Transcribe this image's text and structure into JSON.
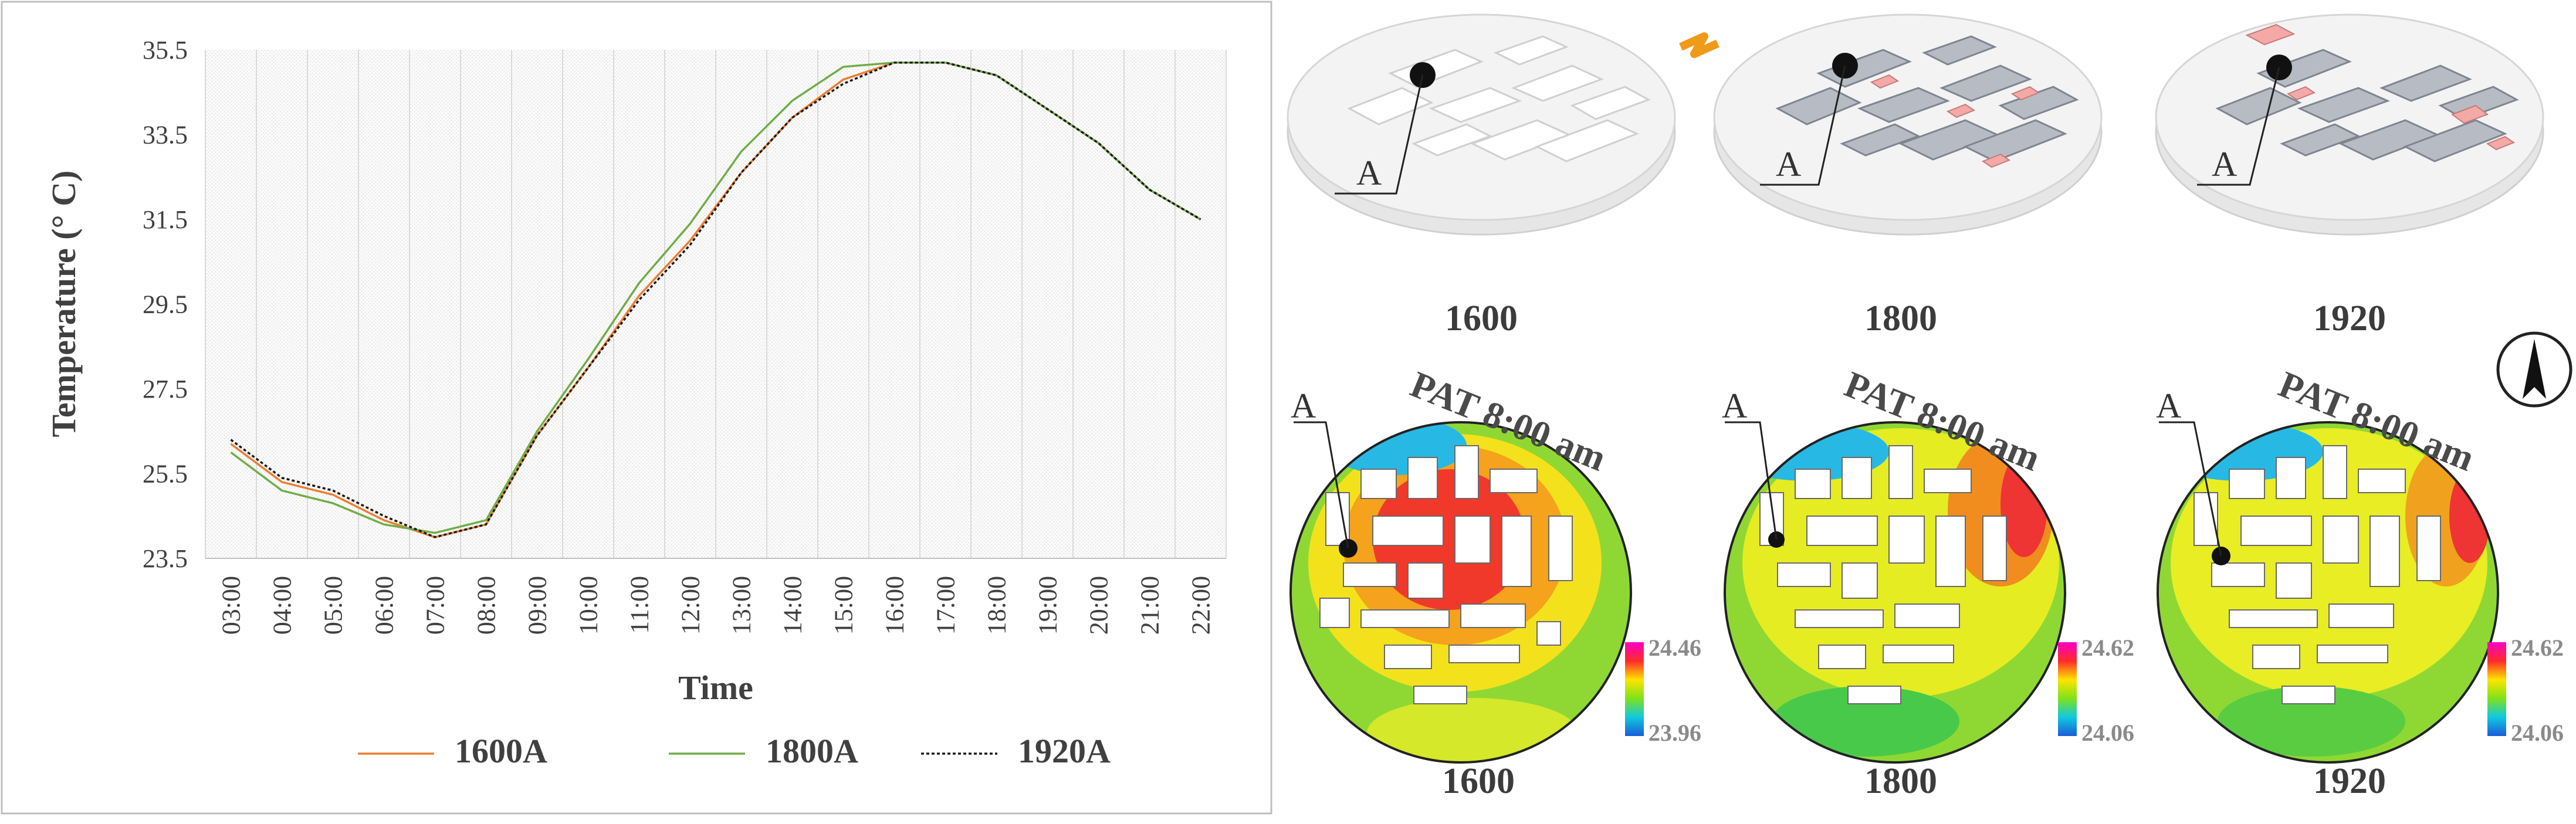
{
  "chart_data": {
    "type": "line",
    "xlabel": "Time",
    "ylabel": "Temperature (° C)",
    "ylim": [
      23.5,
      35.5
    ],
    "yticks": [
      "35.5",
      "33.5",
      "31.5",
      "29.5",
      "27.5",
      "25.5",
      "23.5"
    ],
    "categories": [
      "03:00",
      "04:00",
      "05:00",
      "06:00",
      "07:00",
      "08:00",
      "09:00",
      "10:00",
      "11:00",
      "12:00",
      "13:00",
      "14:00",
      "15:00",
      "16:00",
      "17:00",
      "18:00",
      "19:00",
      "20:00",
      "21:00",
      "22:00"
    ],
    "grid": true,
    "legend_position": "bottom",
    "series": [
      {
        "name": "1600A",
        "color": "#ed7d31",
        "dash": "solid",
        "values": [
          26.2,
          25.3,
          25.0,
          24.4,
          24.0,
          24.3,
          26.4,
          28.0,
          29.7,
          31.0,
          32.6,
          33.9,
          34.8,
          35.2,
          35.2,
          34.9,
          34.1,
          33.3,
          32.2,
          31.5
        ]
      },
      {
        "name": "1800A",
        "color": "#70ad47",
        "dash": "solid",
        "values": [
          26.0,
          25.1,
          24.8,
          24.3,
          24.1,
          24.4,
          26.5,
          28.2,
          30.0,
          31.4,
          33.1,
          34.3,
          35.1,
          35.2,
          35.2,
          34.9,
          34.1,
          33.3,
          32.2,
          31.5
        ]
      },
      {
        "name": "1920A",
        "color": "#1a1a1a",
        "dash": "dotted",
        "values": [
          26.3,
          25.4,
          25.1,
          24.5,
          24.0,
          24.3,
          26.4,
          28.0,
          29.6,
          30.9,
          32.6,
          33.9,
          34.7,
          35.2,
          35.2,
          34.9,
          34.1,
          33.3,
          32.2,
          31.5
        ]
      }
    ]
  },
  "axonometric": {
    "labels": [
      "1600",
      "1800",
      "1920"
    ],
    "point": "A"
  },
  "pat_maps": {
    "title": "PAT 8:00 am",
    "point": "A",
    "labels": [
      "1600",
      "1800",
      "1920"
    ],
    "scales": [
      {
        "max": "24.46",
        "min": "23.96"
      },
      {
        "max": "24.62",
        "min": "24.06"
      },
      {
        "max": "24.62",
        "min": "24.06"
      }
    ]
  },
  "north_arrow": "north-arrow-icon"
}
